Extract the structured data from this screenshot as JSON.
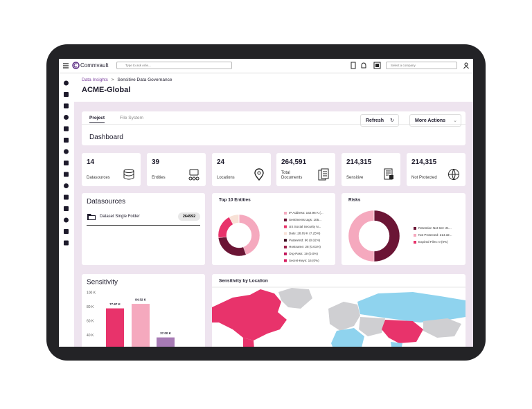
{
  "topbar": {
    "brand": "Commvault",
    "search_placeholder": "Type to ask Arlie...",
    "company_placeholder": "Select a company"
  },
  "breadcrumb": {
    "parent": "Data Insights",
    "separator": ">",
    "current": "Sensitive Data Governance"
  },
  "page_title": "ACME-Global",
  "tabs": [
    "Project",
    "File System"
  ],
  "buttons": {
    "refresh": "Refresh",
    "more_actions": "More Actions"
  },
  "dashboard_title": "Dashboard",
  "stats": [
    {
      "value": "14",
      "label": "Datasources"
    },
    {
      "value": "39",
      "label": "Entities"
    },
    {
      "value": "24",
      "label": "Locations"
    },
    {
      "value": "264,591",
      "label": "Total Documents"
    },
    {
      "value": "214,315",
      "label": "Sensitive"
    },
    {
      "value": "214,315",
      "label": "Not Protected"
    }
  ],
  "datasources": {
    "title": "Datasources",
    "items": [
      {
        "name": "Dataset Single Folder",
        "count": "264592"
      }
    ]
  },
  "top_entities": {
    "type": "pie",
    "title": "Top 10 Entities",
    "labels": [
      "IP Address: 162.96 K (...",
      "Sentiments tags: 105...",
      "US Social Security N...",
      "Date: 28.69 K (7.25%)",
      "Password: 96 (0.02%)",
      "Hostname: 28 (0.01%)",
      "Org-Pass: 19 (0.0%)",
      "Secret-Keys: 16 (0%)"
    ],
    "values": [
      162960,
      105000,
      70000,
      28690,
      96,
      28,
      19,
      16
    ],
    "colors": [
      "#f5a9be",
      "#6b1535",
      "#e8336b",
      "#f8e1d6",
      "#3b0a1e",
      "#9b1e48",
      "#c2185b",
      "#d81b60"
    ]
  },
  "risks": {
    "type": "pie",
    "title": "Risks",
    "labels": [
      "Retention Not Set: 21...",
      "Not Protected: 214.32...",
      "Expired Files: 0 (0%)"
    ],
    "values": [
      214315,
      214320,
      0
    ],
    "colors": [
      "#6b1535",
      "#f5a9be",
      "#e8336b"
    ]
  },
  "sensitivity": {
    "type": "bar",
    "title": "Sensitivity",
    "values": [
      77970,
      84320,
      37000
    ],
    "value_labels": [
      "77.97 K",
      "84.32 K",
      "37.00 K"
    ],
    "colors": [
      "#e8336b",
      "#f5a9be",
      "#a77bb5"
    ],
    "ylim": [
      0,
      100000
    ],
    "yticks": [
      {
        "value": 40000,
        "label": "40 K"
      },
      {
        "value": 60000,
        "label": "60 K"
      },
      {
        "value": 80000,
        "label": "80 K"
      },
      {
        "value": 100000,
        "label": "100 K"
      }
    ]
  },
  "map": {
    "title": "Sensitivity by Location"
  }
}
